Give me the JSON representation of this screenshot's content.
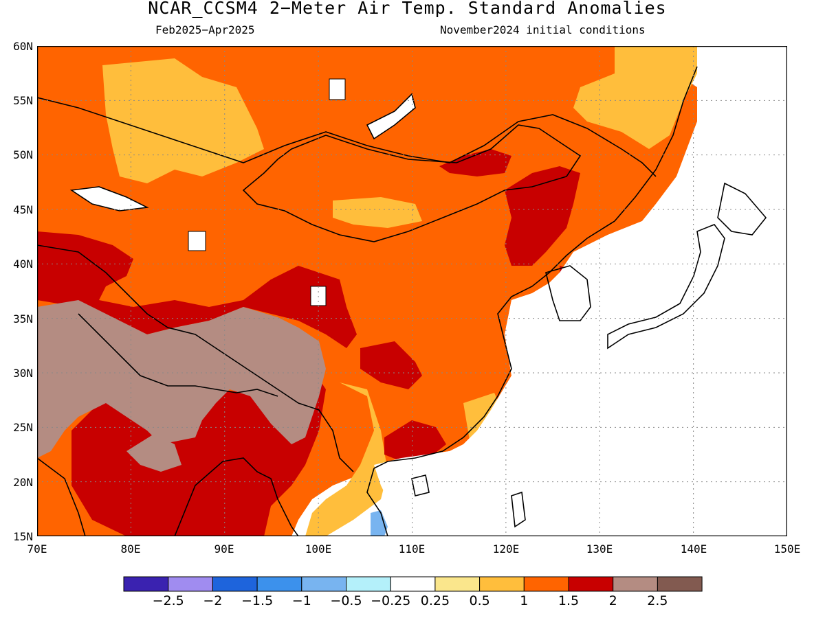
{
  "title": "NCAR_CCSM4 2−Meter Air Temp. Standard Anomalies",
  "subtitle_left": "Feb2025−Apr2025",
  "subtitle_right": "November2024 initial conditions",
  "map": {
    "lon_range": [
      70,
      150
    ],
    "lat_range": [
      15,
      60
    ],
    "lat_labels": [
      "60N",
      "55N",
      "50N",
      "45N",
      "40N",
      "35N",
      "30N",
      "25N",
      "20N",
      "15N"
    ],
    "lon_labels": [
      "70E",
      "80E",
      "90E",
      "100E",
      "110E",
      "120E",
      "130E",
      "140E",
      "150E"
    ],
    "grid": "dotted"
  },
  "colorbar": {
    "colors": [
      "#3a22b0",
      "#a08cf0",
      "#1e64dc",
      "#3c91ec",
      "#78b4f0",
      "#b4f0fa",
      "#ffffff",
      "#fae68c",
      "#ffbe3c",
      "#ff6400",
      "#c80000",
      "#b48c82",
      "#825a50"
    ],
    "labels": [
      "−2.5",
      "−2",
      "−1.5",
      "−1",
      "−0.5",
      "−0.25",
      "0.25",
      "0.5",
      "1",
      "1.5",
      "2",
      "2.5"
    ]
  }
}
